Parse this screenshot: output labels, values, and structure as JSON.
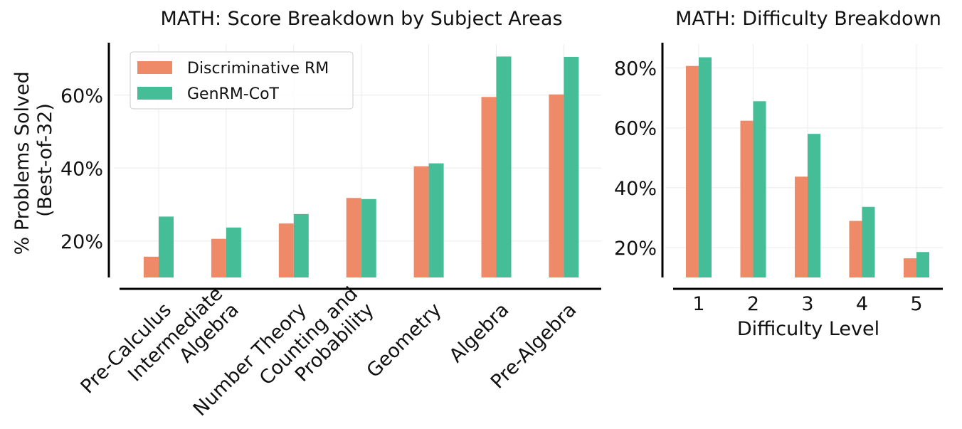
{
  "colors": {
    "discriminative": "#ef8a68",
    "genrm": "#45be98",
    "grid": "#ebebeb",
    "axis": "#000000"
  },
  "chart_data": [
    {
      "type": "bar",
      "title": "MATH: Score Breakdown by Subject Areas",
      "ylabel_lines": [
        "% Problems Solved",
        "(Best-of-32)"
      ],
      "xlabel": "",
      "categories": [
        [
          "Pre-Calculus"
        ],
        [
          "Intermediate",
          "Algebra"
        ],
        [
          "Number Theory"
        ],
        [
          "Counting and",
          "Probability"
        ],
        [
          "Geometry"
        ],
        [
          "Algebra"
        ],
        [
          "Pre-Algebra"
        ]
      ],
      "series": [
        {
          "name": "Discriminative RM",
          "color_key": "discriminative",
          "values": [
            15.7,
            20.6,
            24.8,
            31.8,
            40.5,
            59.5,
            60.2
          ]
        },
        {
          "name": "GenRM-CoT",
          "color_key": "genrm",
          "values": [
            26.7,
            23.7,
            27.4,
            31.5,
            41.3,
            70.6,
            70.5
          ]
        }
      ],
      "ylim": [
        10,
        74
      ],
      "yticks": [
        20,
        40,
        60
      ],
      "ytick_labels": [
        "20%",
        "40%",
        "60%"
      ],
      "grid": true,
      "legend_position": "top-left"
    },
    {
      "type": "bar",
      "title": "MATH: Difficulty Breakdown",
      "xlabel": "Difficulty Level",
      "ylabel": "",
      "categories": [
        [
          "1"
        ],
        [
          "2"
        ],
        [
          "3"
        ],
        [
          "4"
        ],
        [
          "5"
        ]
      ],
      "series": [
        {
          "name": "Discriminative RM",
          "color_key": "discriminative",
          "values": [
            80.7,
            62.4,
            43.7,
            28.9,
            16.4
          ]
        },
        {
          "name": "GenRM-CoT",
          "color_key": "genrm",
          "values": [
            83.6,
            68.9,
            58.0,
            33.6,
            18.5
          ]
        }
      ],
      "ylim": [
        10,
        88
      ],
      "yticks": [
        20,
        40,
        60,
        80
      ],
      "ytick_labels": [
        "20%",
        "40%",
        "60%",
        "80%"
      ],
      "grid": true
    }
  ]
}
